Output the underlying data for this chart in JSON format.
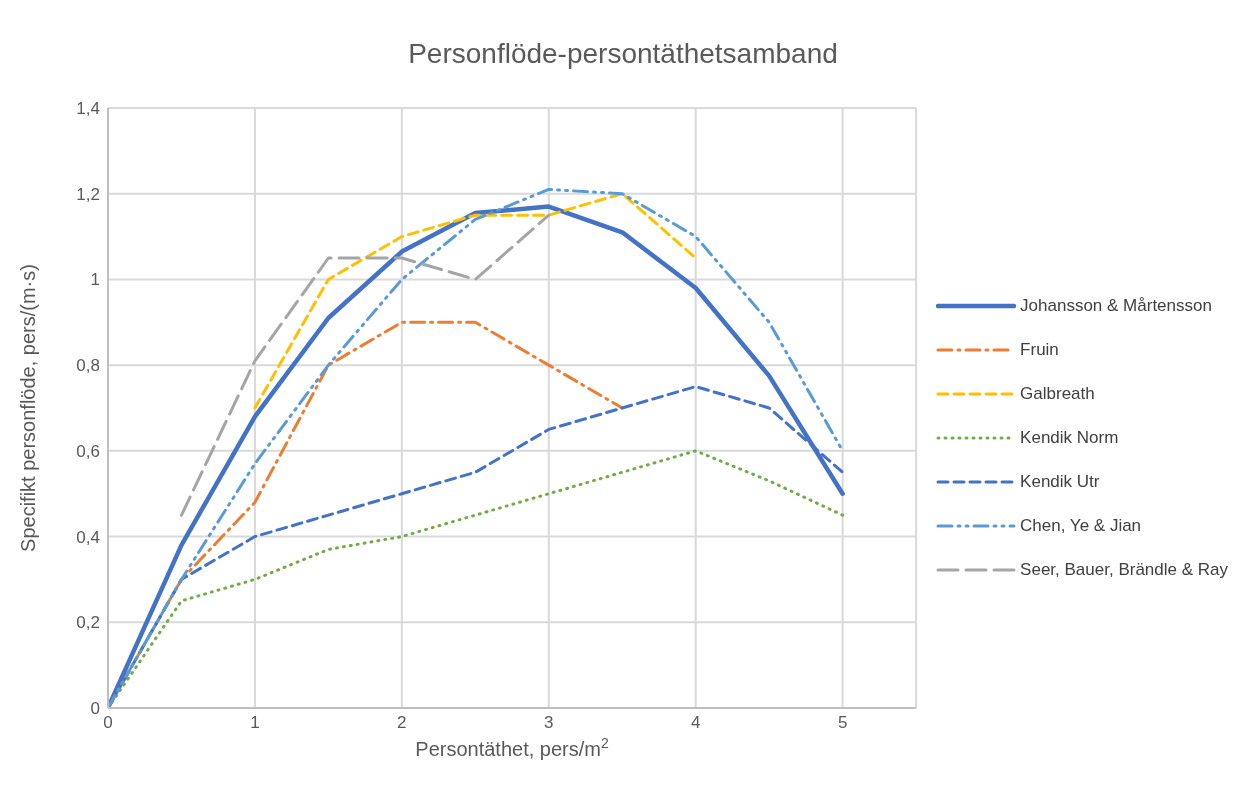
{
  "chart_data": {
    "type": "line",
    "title": "Personflöde-persontäthetsamband",
    "xlabel": "Persontäthet, pers/m$^{2}$",
    "ylabel": "Specifikt personflöde, pers/(m·s)",
    "x": [
      0,
      0.5,
      1,
      1.5,
      2,
      2.5,
      3,
      3.5,
      4,
      4.5,
      5
    ],
    "series": [
      {
        "name": "Johansson & Mårtensson",
        "color": "#4472c4",
        "line_style": "solid",
        "values": [
          0,
          0.38,
          0.68,
          0.91,
          1.065,
          1.155,
          1.17,
          1.11,
          0.98,
          0.775,
          0.5
        ]
      },
      {
        "name": "Fruin",
        "color": "#ed7d31",
        "line_style": "dashdot",
        "values": [
          0,
          0.3,
          0.48,
          0.8,
          0.9,
          0.9,
          0.8,
          0.7,
          null,
          null,
          null
        ]
      },
      {
        "name": "Galbreath",
        "color": "#ffc000",
        "line_style": "dashed",
        "values": [
          null,
          null,
          0.7,
          1.0,
          1.1,
          1.15,
          1.15,
          1.2,
          1.05,
          null,
          null
        ]
      },
      {
        "name": "Kendik Norm",
        "color": "#70ad47",
        "line_style": "dotted",
        "values": [
          0,
          0.25,
          0.3,
          0.37,
          0.4,
          0.45,
          0.5,
          0.55,
          0.6,
          0.53,
          0.45
        ]
      },
      {
        "name": "Kendik Utr",
        "color": "#4472c4",
        "line_style": "dashed",
        "values": [
          0,
          0.3,
          0.4,
          0.45,
          0.5,
          0.55,
          0.65,
          0.7,
          0.75,
          0.7,
          0.55
        ]
      },
      {
        "name": "Chen, Ye & Jian",
        "color": "#5b9bd5",
        "line_style": "dashdotdot",
        "values": [
          0,
          0.3,
          0.57,
          0.8,
          1.0,
          1.14,
          1.21,
          1.2,
          1.1,
          0.9,
          0.6
        ]
      },
      {
        "name": "Seer, Bauer, Brändle & Ray",
        "color": "#a5a5a5",
        "line_style": "longdash",
        "values": [
          null,
          0.45,
          0.81,
          1.05,
          1.05,
          1.0,
          1.15,
          null,
          null,
          null,
          null
        ]
      }
    ],
    "xlim": [
      0,
      5.5
    ],
    "xticks": [
      0,
      1,
      2,
      3,
      4,
      5
    ],
    "ylim": [
      0,
      1.4
    ],
    "yticks": [
      0,
      {
        "value": 0.2,
        "label": "0,2"
      },
      {
        "value": 0.4,
        "label": "0,4"
      },
      {
        "value": 0.6,
        "label": "0,6"
      },
      {
        "value": 0.8,
        "label": "0,8"
      },
      1,
      {
        "value": 1.2,
        "label": "1,2"
      },
      {
        "value": 1.4,
        "label": "1,4"
      }
    ],
    "grid": true,
    "legend": "right",
    "marker": "none"
  }
}
